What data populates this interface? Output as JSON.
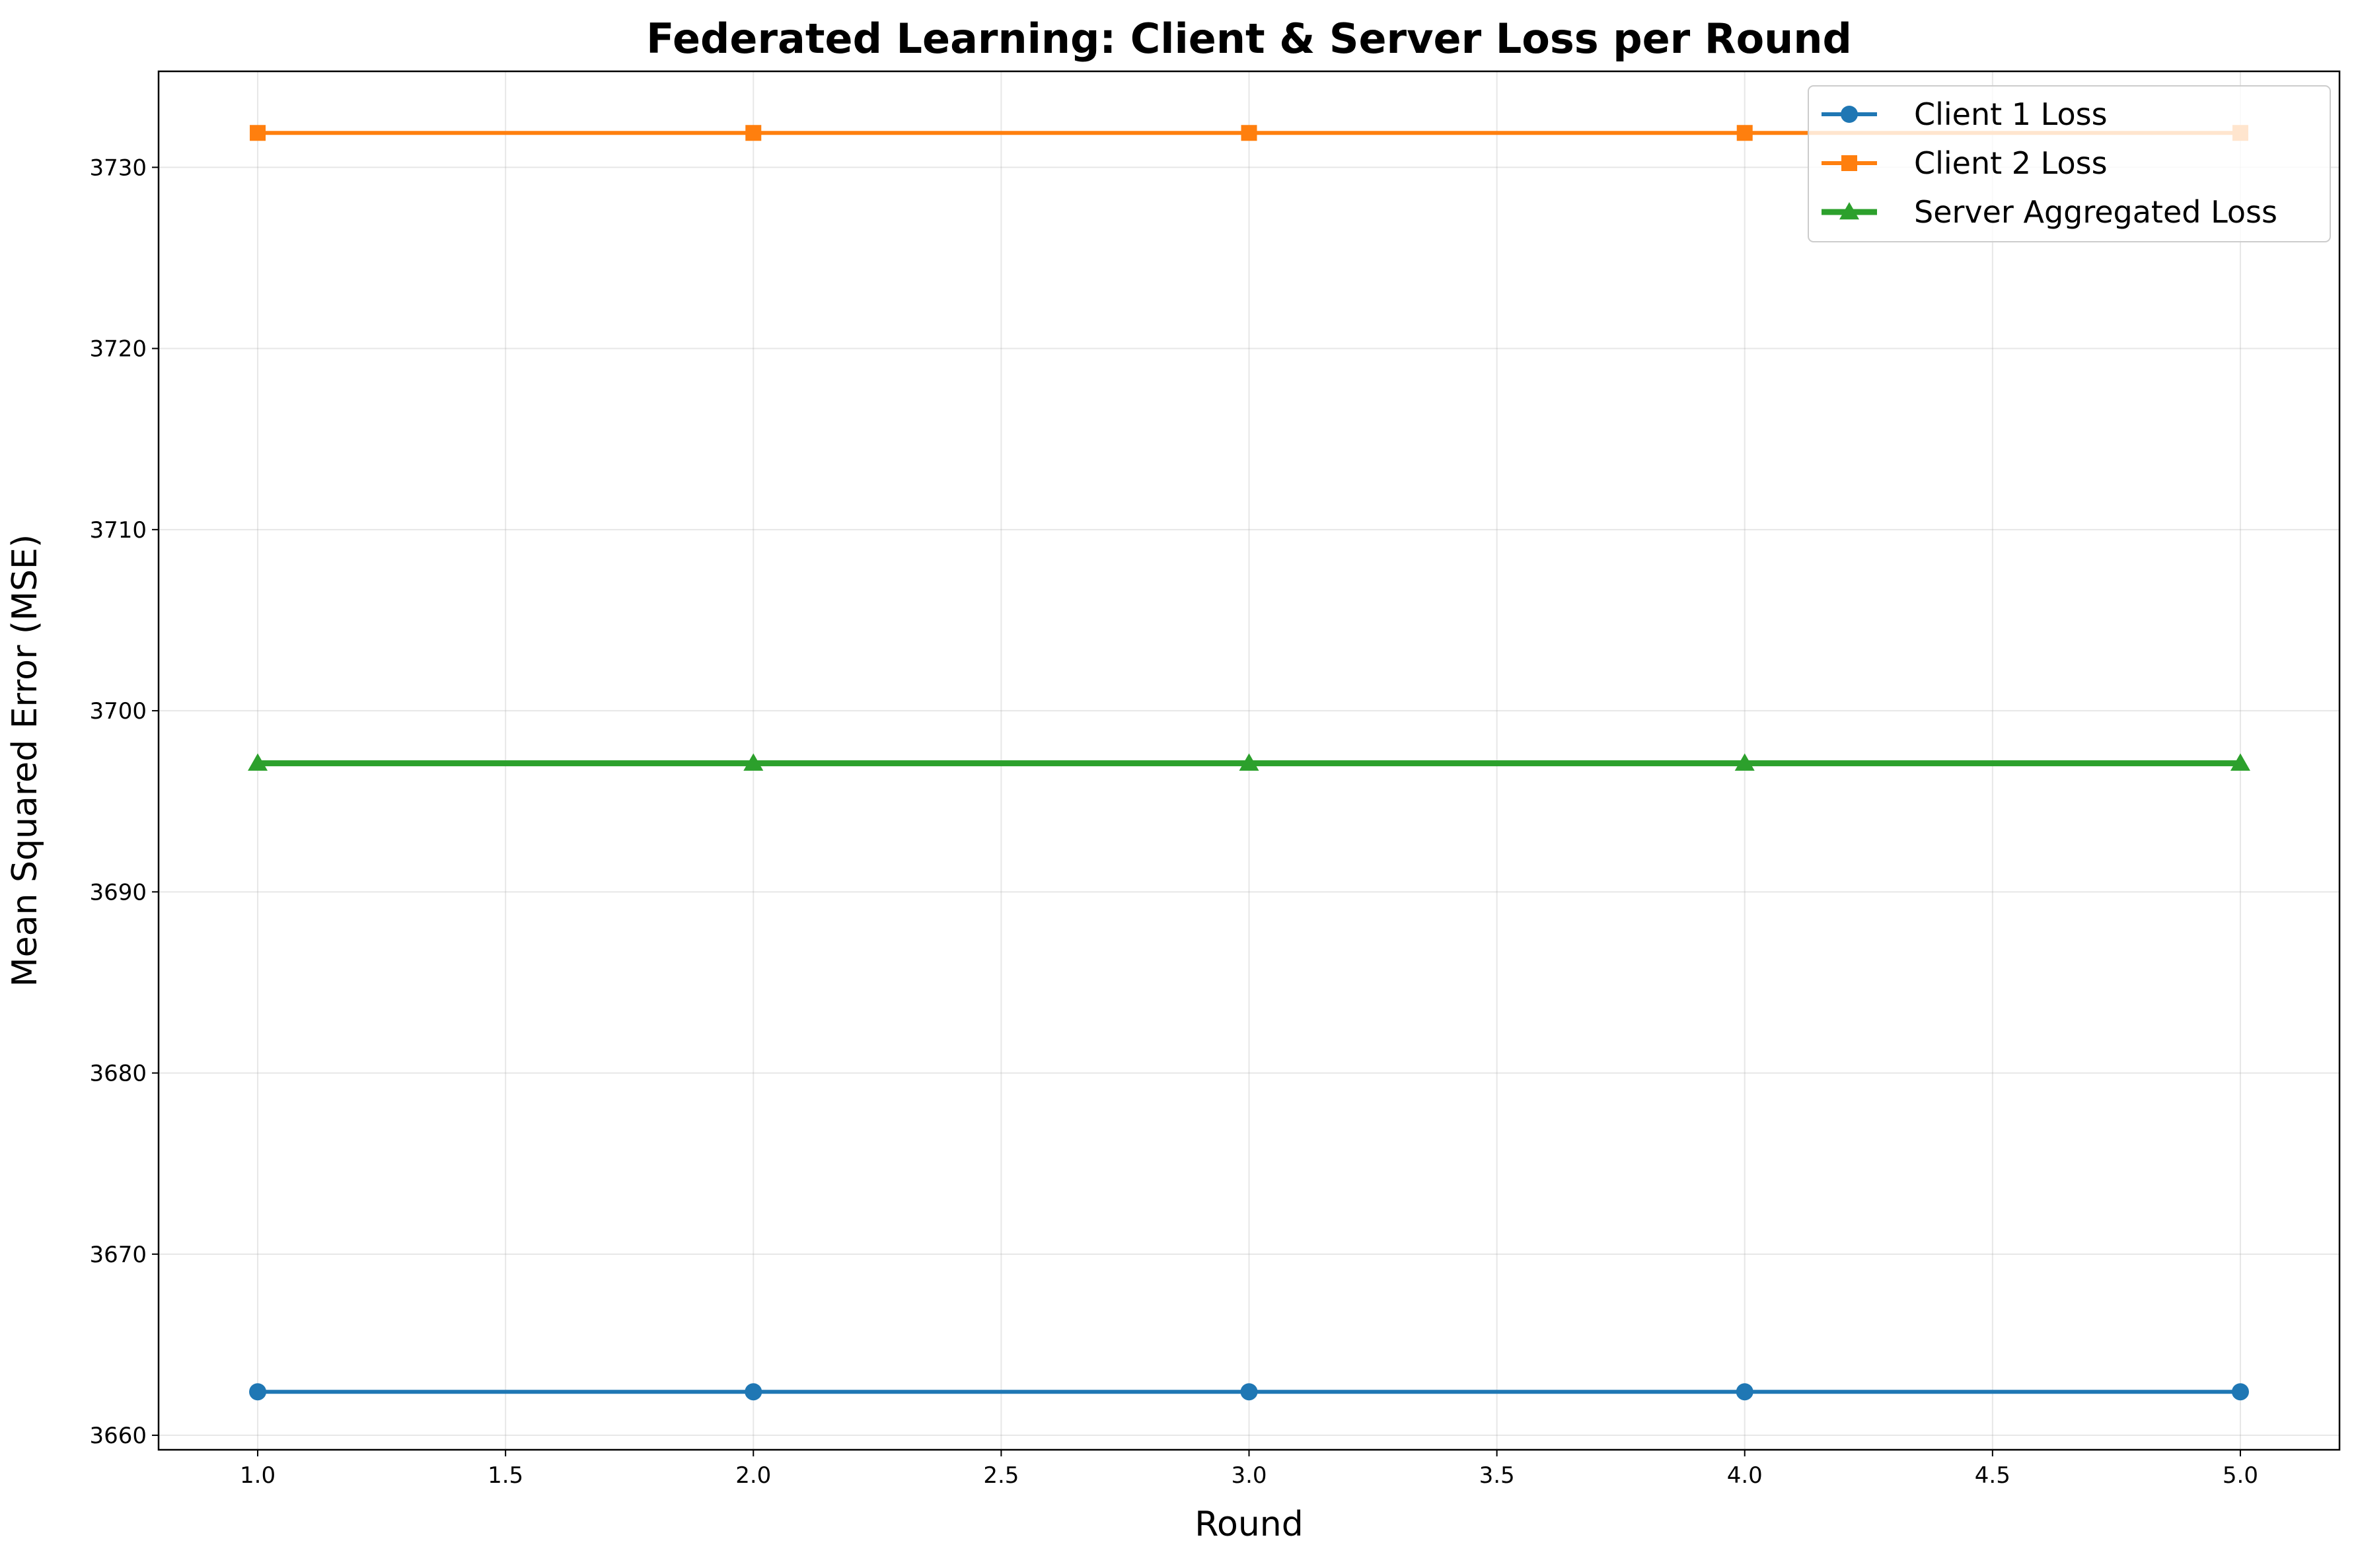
{
  "chart_data": {
    "type": "line",
    "title": "Federated Learning: Client & Server Loss per Round",
    "xlabel": "Round",
    "ylabel": "Mean Squared Error (MSE)",
    "xlim": [
      0.8,
      5.2
    ],
    "ylim": [
      3659.2,
      3735.3
    ],
    "x_ticks": [
      1.0,
      1.5,
      2.0,
      2.5,
      3.0,
      3.5,
      4.0,
      4.5,
      5.0
    ],
    "x_tick_labels": [
      "1.0",
      "1.5",
      "2.0",
      "2.5",
      "3.0",
      "3.5",
      "4.0",
      "4.5",
      "5.0"
    ],
    "y_ticks": [
      3660,
      3670,
      3680,
      3690,
      3700,
      3710,
      3720,
      3730
    ],
    "y_tick_labels": [
      "3660",
      "3670",
      "3680",
      "3690",
      "3700",
      "3710",
      "3720",
      "3730"
    ],
    "grid": true,
    "legend_position": "upper-right",
    "x": [
      1,
      2,
      3,
      4,
      5
    ],
    "series": [
      {
        "name": "Client 1 Loss",
        "values": [
          3662.4,
          3662.4,
          3662.4,
          3662.4,
          3662.4
        ],
        "color": "#1f77b4",
        "marker": "circle"
      },
      {
        "name": "Client 2 Loss",
        "values": [
          3731.9,
          3731.9,
          3731.9,
          3731.9,
          3731.9
        ],
        "color": "#ff7f0e",
        "marker": "square"
      },
      {
        "name": "Server Aggregated Loss",
        "values": [
          3697.1,
          3697.1,
          3697.1,
          3697.1,
          3697.1
        ],
        "color": "#2ca02c",
        "marker": "triangle"
      }
    ]
  }
}
